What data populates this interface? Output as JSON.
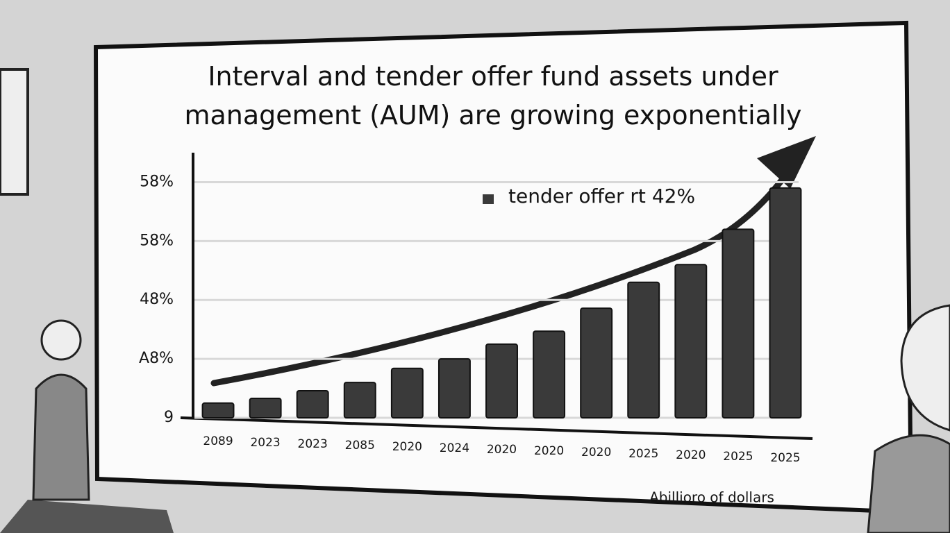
{
  "chart_data": {
    "type": "bar",
    "title": "Interval and tender offer fund assets under management (AUM) are growing exponentially",
    "categories": [
      "2089",
      "2023",
      "2023",
      "2085",
      "2020",
      "2024",
      "2020",
      "2020",
      "2020",
      "2025",
      "2020",
      "2025",
      "2025"
    ],
    "series": [
      {
        "name": "tender offer rt 42%",
        "color": "#3a3a3a",
        "values": [
          0.25,
          0.33,
          0.46,
          0.6,
          0.84,
          1.0,
          1.25,
          1.47,
          1.86,
          2.3,
          2.6,
          3.2,
          3.9
        ]
      }
    ],
    "ylim": [
      0,
      4.5
    ],
    "yticks": [
      {
        "value": 0,
        "label": "9"
      },
      {
        "value": 1,
        "label": "A8%"
      },
      {
        "value": 2,
        "label": "48%"
      },
      {
        "value": 3,
        "label": "58%"
      },
      {
        "value": 4,
        "label": "58%"
      }
    ],
    "grid": true,
    "note": "Abillioro of dollars"
  }
}
